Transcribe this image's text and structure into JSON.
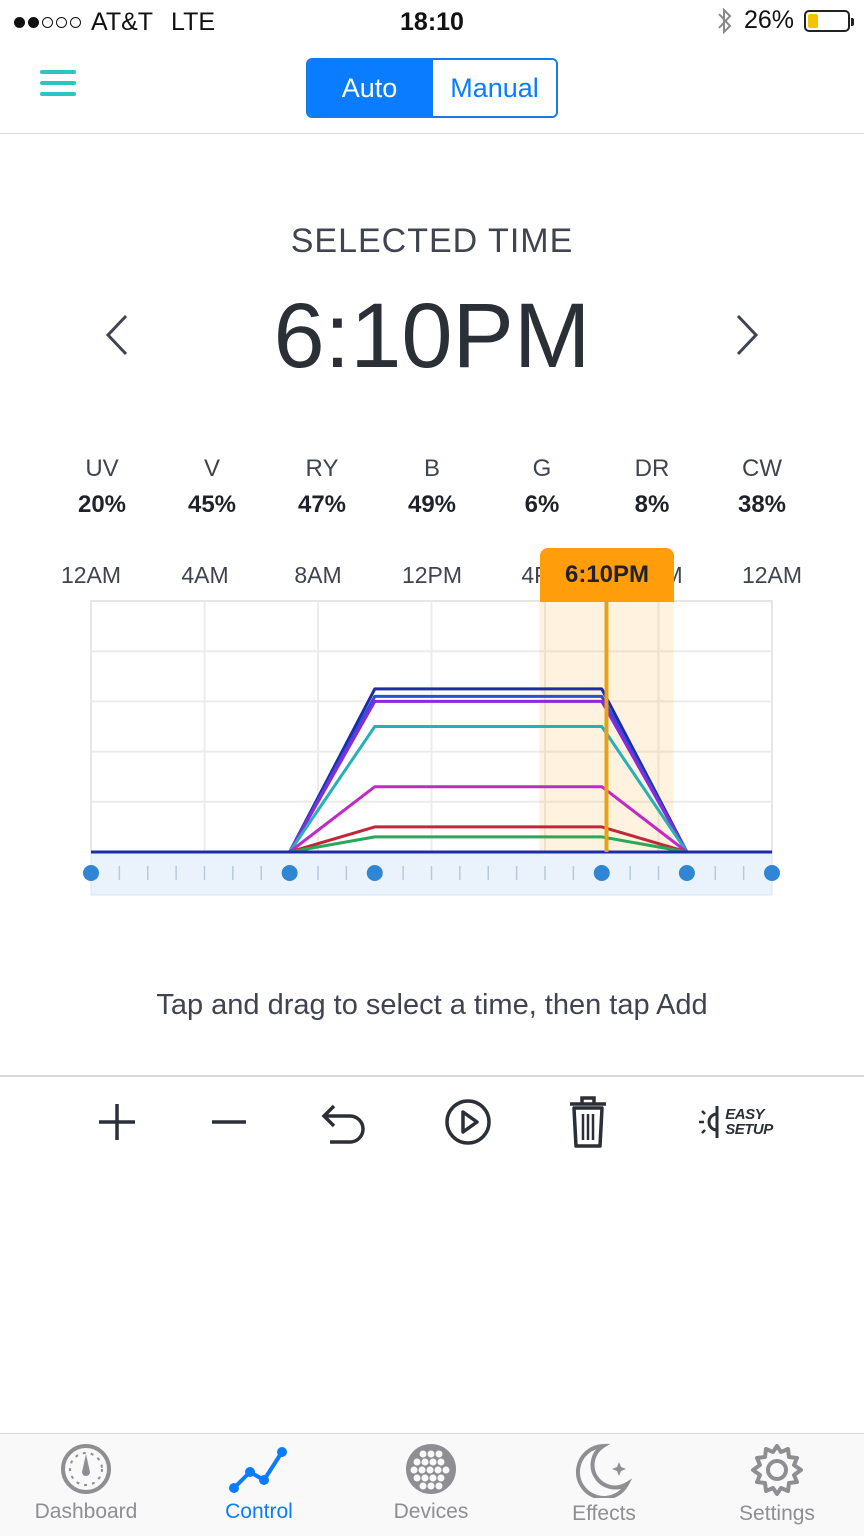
{
  "status_bar": {
    "carrier": "AT&T",
    "network": "LTE",
    "time": "18:10",
    "battery": "26%",
    "battery_level": 0.26,
    "signal_bars": 2
  },
  "mode_toggle": {
    "auto_label": "Auto",
    "manual_label": "Manual",
    "selected": "Auto"
  },
  "selected_time": {
    "label": "SELECTED TIME",
    "value": "6:10PM"
  },
  "channels": [
    {
      "name": "UV",
      "value": "20%"
    },
    {
      "name": "V",
      "value": "45%"
    },
    {
      "name": "RY",
      "value": "47%"
    },
    {
      "name": "B",
      "value": "49%"
    },
    {
      "name": "G",
      "value": "6%"
    },
    {
      "name": "DR",
      "value": "8%"
    },
    {
      "name": "CW",
      "value": "38%"
    }
  ],
  "chart": {
    "time_labels": [
      "12AM",
      "4AM",
      "8AM",
      "12PM",
      "4PM",
      "8PM",
      "12AM"
    ],
    "cursor_label": "6:10PM",
    "cursor_hour": 18.1667,
    "colors": {
      "accent": "#0a7cff",
      "cursor": "#ff9d0a",
      "teal": "#2ec4c4"
    }
  },
  "chart_data": {
    "type": "line",
    "x_unit": "hour of day",
    "xlim": [
      0,
      24
    ],
    "ylim": [
      0,
      100
    ],
    "x_ticks": [
      "12AM",
      "4AM",
      "8AM",
      "12PM",
      "4PM",
      "8PM",
      "12AM"
    ],
    "keyframe_hours": [
      0,
      7,
      10,
      18,
      21,
      24
    ],
    "series": [
      {
        "color": "#1c2ca8",
        "points": [
          [
            0,
            0
          ],
          [
            7,
            0
          ],
          [
            10,
            65
          ],
          [
            18,
            65
          ],
          [
            21,
            0
          ],
          [
            24,
            0
          ]
        ]
      },
      {
        "color": "#2a4fd6",
        "points": [
          [
            0,
            0
          ],
          [
            7,
            0
          ],
          [
            10,
            62
          ],
          [
            18,
            62
          ],
          [
            21,
            0
          ],
          [
            24,
            0
          ]
        ]
      },
      {
        "color": "#8a2ad8",
        "points": [
          [
            0,
            0
          ],
          [
            7,
            0
          ],
          [
            10,
            60
          ],
          [
            18,
            60
          ],
          [
            21,
            0
          ],
          [
            24,
            0
          ]
        ]
      },
      {
        "color": "#26b0b8",
        "points": [
          [
            0,
            0
          ],
          [
            7,
            0
          ],
          [
            10,
            50
          ],
          [
            18,
            50
          ],
          [
            21,
            0
          ],
          [
            24,
            0
          ]
        ]
      },
      {
        "color": "#c02ac8",
        "points": [
          [
            0,
            0
          ],
          [
            7,
            0
          ],
          [
            10,
            26
          ],
          [
            18,
            26
          ],
          [
            21,
            0
          ],
          [
            24,
            0
          ]
        ]
      },
      {
        "color": "#c0283a",
        "points": [
          [
            0,
            0
          ],
          [
            7,
            0
          ],
          [
            10,
            10
          ],
          [
            18,
            10
          ],
          [
            21,
            0
          ],
          [
            24,
            0
          ]
        ]
      },
      {
        "color": "#2aa85a",
        "points": [
          [
            0,
            0
          ],
          [
            7,
            0
          ],
          [
            10,
            6
          ],
          [
            18,
            6
          ],
          [
            21,
            0
          ],
          [
            24,
            0
          ]
        ]
      }
    ]
  },
  "hint": "Tap and drag to select a time, then tap Add",
  "toolbar": {
    "easy_line1": "EASY",
    "easy_line2": "SETUP"
  },
  "tabs": [
    {
      "label": "Dashboard",
      "icon": "gauge-icon",
      "active": false
    },
    {
      "label": "Control",
      "icon": "graph-icon",
      "active": true
    },
    {
      "label": "Devices",
      "icon": "led-grid-icon",
      "active": false
    },
    {
      "label": "Effects",
      "icon": "moon-icon",
      "active": false
    },
    {
      "label": "Settings",
      "icon": "gear-icon",
      "active": false
    }
  ]
}
